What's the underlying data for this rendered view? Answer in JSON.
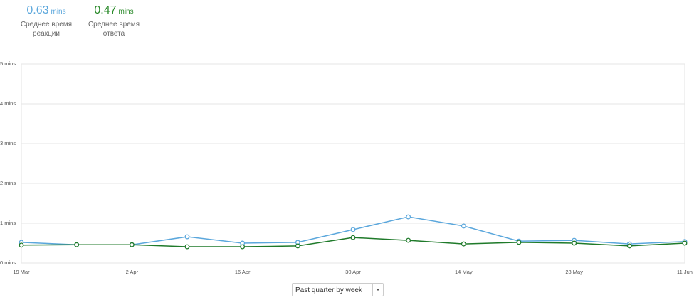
{
  "stats": [
    {
      "value": "0.63",
      "unit": "mins",
      "caption": "Среднее время реакции",
      "color": "#5ba7dc"
    },
    {
      "value": "0.47",
      "unit": "mins",
      "caption": "Среднее время ответа",
      "color": "#2a8a2a"
    }
  ],
  "chart_data": {
    "type": "line",
    "categories": [
      "19 Mar",
      null,
      "2 Apr",
      null,
      "16 Apr",
      null,
      "30 Apr",
      null,
      "14 May",
      null,
      "28 May",
      null,
      "11 Jun"
    ],
    "series": [
      {
        "color": "#5ba7dc",
        "values": [
          0.52,
          0.46,
          0.46,
          0.66,
          0.5,
          0.52,
          0.84,
          1.16,
          0.93,
          0.55,
          0.57,
          0.48,
          0.54
        ]
      },
      {
        "color": "#1f7a2a",
        "values": [
          0.45,
          0.46,
          0.46,
          0.41,
          0.41,
          0.43,
          0.64,
          0.57,
          0.48,
          0.52,
          0.5,
          0.43,
          0.5
        ]
      }
    ],
    "ylim": [
      0,
      5
    ],
    "yticks": [
      {
        "value": 0,
        "label": "0 mins"
      },
      {
        "value": 1,
        "label": "1 mins"
      },
      {
        "value": 2,
        "label": "2 mins"
      },
      {
        "value": 3,
        "label": "3 mins"
      },
      {
        "value": 4,
        "label": "4 mins"
      },
      {
        "value": 5,
        "label": "5 mins"
      }
    ],
    "grid": true
  },
  "dropdown": {
    "label": "Past quarter by week"
  }
}
